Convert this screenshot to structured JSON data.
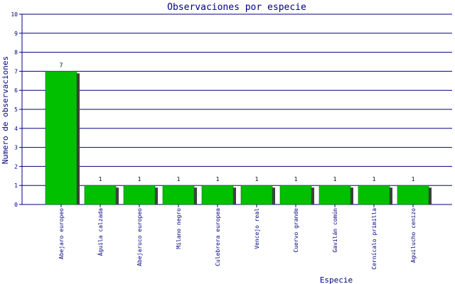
{
  "chart_data": {
    "type": "bar",
    "title": "Observaciones por especie",
    "xlabel": "Especie",
    "ylabel": "Numero de observaciones",
    "ylim": [
      0,
      10
    ],
    "yticks": [
      0,
      1,
      2,
      3,
      4,
      5,
      6,
      7,
      8,
      9,
      10
    ],
    "grid": true,
    "categories": [
      "Abejaro europeo",
      "Águila calzada",
      "Abejaruco europeo",
      "Milano negro",
      "Culebrera europea",
      "Vencejo real",
      "Cuervo grande",
      "Gavilán común",
      "Cernícalo primilla",
      "Aguilucho cenizo"
    ],
    "values": [
      7,
      1,
      1,
      1,
      1,
      1,
      1,
      1,
      1,
      1
    ],
    "colors": {
      "bar": "#00c000",
      "bar_edge": "#007000",
      "shadow": "#404040",
      "grid": "#000080",
      "axis": "#000080",
      "text": "#000080"
    }
  }
}
